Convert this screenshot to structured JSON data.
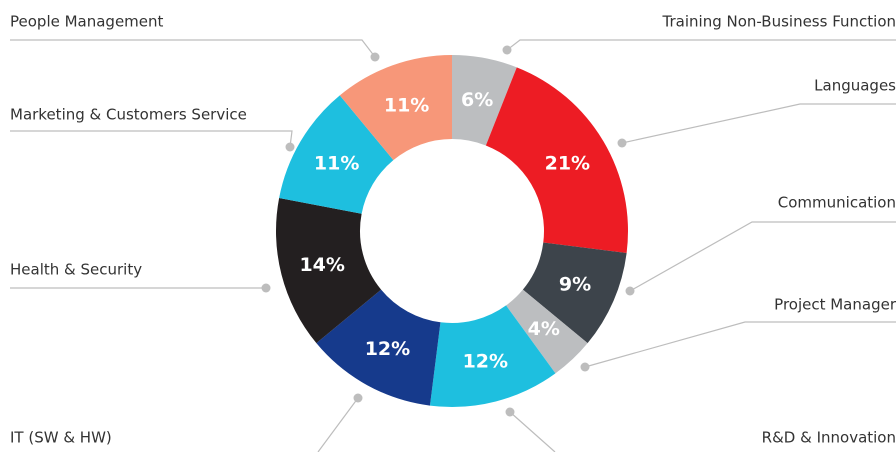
{
  "chart_data": {
    "type": "donut",
    "categories": [
      "Training Non-Business Function",
      "Languages",
      "Communication",
      "Project Manager",
      "R&D & Innovation",
      "IT (SW & HW)",
      "Health & Security",
      "Marketing & Customers Service",
      "People Management"
    ],
    "values": [
      6,
      21,
      9,
      4,
      12,
      12,
      14,
      11,
      11
    ],
    "value_labels": [
      "6%",
      "21%",
      "9%",
      "4%",
      "12%",
      "12%",
      "14%",
      "11%",
      "11%"
    ],
    "colors": [
      "#bcbec0",
      "#ed1c24",
      "#3d444b",
      "#bcbec0",
      "#1ebfdf",
      "#163a8c",
      "#231f20",
      "#1ebfdf",
      "#f79779"
    ]
  }
}
